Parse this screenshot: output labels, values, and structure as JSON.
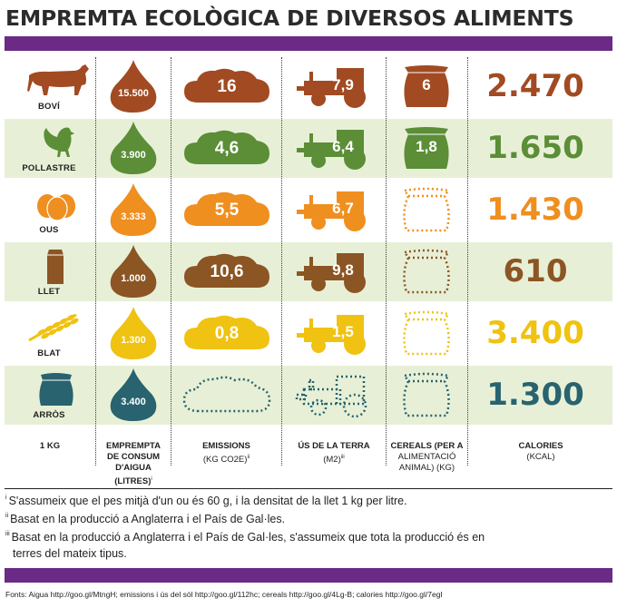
{
  "title": "EMPREMTA ECOLÒGICA DE DIVERSOS ALIMENTS",
  "colors": {
    "purple_bar": "#6a2a85",
    "alt_row": "#e7f0d6",
    "boví": "#a24a22",
    "pollastre": "#5b8e37",
    "ous": "#ef8f1f",
    "llet": "#8c5524",
    "blat": "#f0c211",
    "arròs": "#28636f"
  },
  "icons": [
    "cow-icon",
    "chicken-icon",
    "eggs-icon",
    "milk-carton-icon",
    "wheat-icon",
    "rice-bag-icon",
    "water-drop-icon",
    "emission-cloud-icon",
    "tractor-icon",
    "grain-sack-icon"
  ],
  "columns": {
    "food": [
      "1 KG"
    ],
    "water": [
      "EMPREMPTA",
      "DE CONSUM",
      "D'AIGUA (LITRES)",
      "i"
    ],
    "emissions": [
      "EMISSIONS",
      "(KG CO2E)",
      "ii"
    ],
    "land": [
      "ÚS DE LA TERRA",
      "(M2)",
      "iii"
    ],
    "cereals": [
      "CEREALS (PER A",
      "ALIMENTACIÓ",
      "ANIMAL) (KG)"
    ],
    "calories": [
      "CALORIES",
      "(KCAL)"
    ]
  },
  "rows": [
    {
      "name": "BOVÍ",
      "water": "15.500",
      "emissions": "16",
      "land": "7,9",
      "cereals": "6",
      "calories": "2.470"
    },
    {
      "name": "POLLASTRE",
      "water": "3.900",
      "emissions": "4,6",
      "land": "6,4",
      "cereals": "1,8",
      "calories": "1.650"
    },
    {
      "name": "OUS",
      "water": "3.333",
      "emissions": "5,5",
      "land": "6,7",
      "cereals": "",
      "calories": "1.430"
    },
    {
      "name": "LLET",
      "water": "1.000",
      "emissions": "10,6",
      "land": "9,8",
      "cereals": "",
      "calories": "610"
    },
    {
      "name": "BLAT",
      "water": "1.300",
      "emissions": "0,8",
      "land": "1,5",
      "cereals": "",
      "calories": "3.400"
    },
    {
      "name": "ARRÒS",
      "water": "3.400",
      "emissions": "",
      "land": "",
      "cereals": "",
      "calories": "1.300"
    }
  ],
  "notes": [
    {
      "mark": "i",
      "text": "S'assumeix que el pes mitjà d'un ou és 60 g, i la densitat de la llet 1 kg per litre."
    },
    {
      "mark": "ii",
      "text": "Basat en la producció a Anglaterra i el País de Gal·les."
    },
    {
      "mark": "iii",
      "text": "Basat en la producció a Anglaterra i el País de Gal·les, s'assumeix que tota la producció és en"
    },
    {
      "mark": "",
      "text": "terres del mateix tipus."
    }
  ],
  "source": "Fonts: Aigua http://goo.gl/MtngH; emissions i ús del sòl http://goo.gl/112hc; cereals http://goo.gl/4Lg-B; calories http://goo.gl/7egI"
}
